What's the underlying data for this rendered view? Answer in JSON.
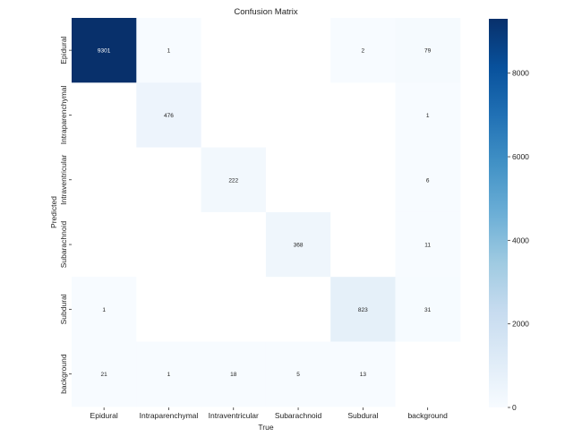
{
  "chart_data": {
    "type": "heatmap",
    "title": "Confusion Matrix",
    "xlabel": "True",
    "ylabel": "Predicted",
    "x_categories": [
      "Epidural",
      "Intraparenchymal",
      "Intraventricular",
      "Subarachnoid",
      "Subdural",
      "background"
    ],
    "y_categories": [
      "Epidural",
      "Intraparenchymal",
      "Intraventricular",
      "Subarachnoid",
      "Subdural",
      "background"
    ],
    "values": [
      [
        9301,
        1,
        null,
        null,
        2,
        79
      ],
      [
        null,
        476,
        null,
        null,
        null,
        1
      ],
      [
        null,
        null,
        222,
        null,
        null,
        6
      ],
      [
        null,
        null,
        null,
        368,
        null,
        11
      ],
      [
        1,
        null,
        null,
        null,
        823,
        31
      ],
      [
        21,
        1,
        18,
        5,
        13,
        null
      ]
    ],
    "colormap": "Blues",
    "color_range": [
      0,
      9301
    ],
    "colorbar_ticks": [
      0,
      2000,
      4000,
      6000,
      8000
    ],
    "colors": {
      "low": "#f7fbff",
      "high": "#08306b"
    }
  }
}
